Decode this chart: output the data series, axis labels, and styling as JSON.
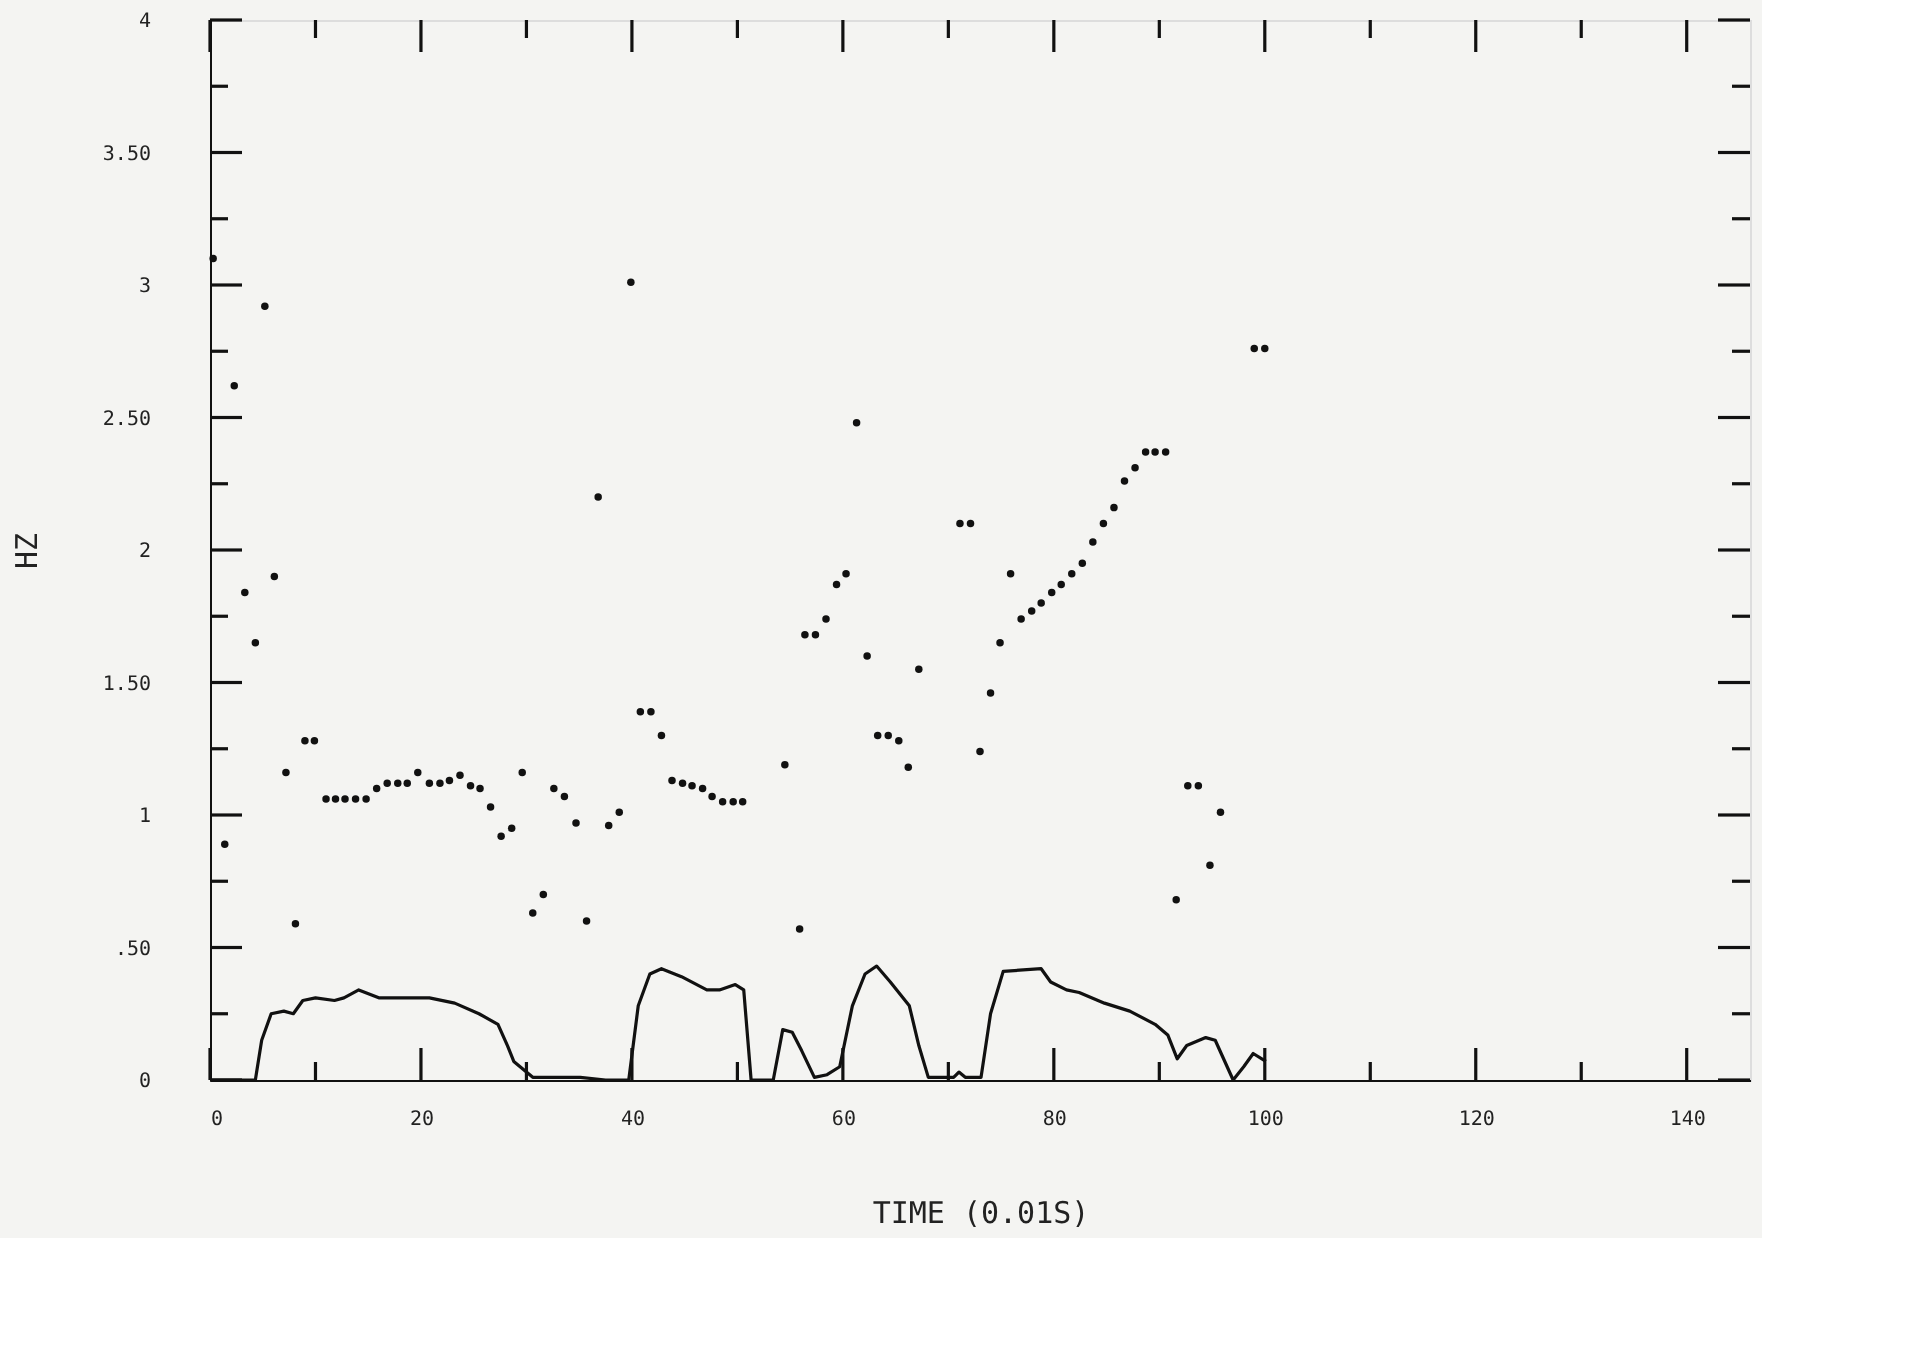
{
  "chart_data": {
    "type": "scatter",
    "xlabel": "TIME    (0.01S)",
    "ylabel": "HZ",
    "xlim": [
      0,
      146
    ],
    "ylim": [
      0,
      4
    ],
    "xticks": [
      0,
      {
        "value": 10,
        "label": null
      },
      20,
      {
        "value": 30,
        "label": null
      },
      40,
      {
        "value": 50,
        "label": null
      },
      60,
      {
        "value": 70,
        "label": null
      },
      80,
      {
        "value": 90,
        "label": null
      },
      100,
      {
        "value": 110,
        "label": null
      },
      120,
      {
        "value": 130,
        "label": null
      },
      140
    ],
    "yticks": [
      0,
      {
        "value": 0.25,
        "label": null
      },
      {
        "value": 0.5,
        "label": ".50"
      },
      {
        "value": 0.75,
        "label": null
      },
      1,
      {
        "value": 1.25,
        "label": null
      },
      {
        "value": 1.5,
        "label": "1.50"
      },
      {
        "value": 1.75,
        "label": null
      },
      2,
      {
        "value": 2.25,
        "label": null
      },
      {
        "value": 2.5,
        "label": "2.50"
      },
      {
        "value": 2.75,
        "label": null
      },
      3,
      {
        "value": 3.25,
        "label": null
      },
      {
        "value": 3.5,
        "label": "3.50"
      },
      {
        "value": 3.75,
        "label": null
      },
      4
    ],
    "grid": false,
    "series": [
      {
        "marker": "circle",
        "color": "#111111",
        "x": [
          0.3,
          1.4,
          2.3,
          3.3,
          4.3,
          5.2,
          6.1,
          7.2,
          8.1,
          9.0,
          9.9,
          11.0,
          11.9,
          12.8,
          13.8,
          14.8,
          15.8,
          16.8,
          17.8,
          18.7,
          19.7,
          20.8,
          21.8,
          22.7,
          23.7,
          24.7,
          25.6,
          26.6,
          27.6,
          28.6,
          29.6,
          30.6,
          31.6,
          32.6,
          33.6,
          34.7,
          35.7,
          36.8,
          37.8,
          38.8,
          39.9,
          40.8,
          41.8,
          42.8,
          43.8,
          44.8,
          45.7,
          46.7,
          47.6,
          48.6,
          49.6,
          50.5,
          54.5,
          55.9,
          56.4,
          57.4,
          58.4,
          59.4,
          60.3,
          61.3,
          62.3,
          63.3,
          64.3,
          65.3,
          66.2,
          67.2,
          71.1,
          72.1,
          73.0,
          74.0,
          74.9,
          75.9,
          76.9,
          77.9,
          78.8,
          79.8,
          80.7,
          81.7,
          82.7,
          83.7,
          84.7,
          85.7,
          86.7,
          87.7,
          88.7,
          89.6,
          90.6,
          91.6,
          92.7,
          93.7,
          94.8,
          95.8,
          99.0,
          100.0
        ],
        "values": [
          3.1,
          0.89,
          2.62,
          1.84,
          1.65,
          2.92,
          1.9,
          1.16,
          0.59,
          1.28,
          1.28,
          1.06,
          1.06,
          1.06,
          1.06,
          1.06,
          1.1,
          1.12,
          1.12,
          1.12,
          1.16,
          1.12,
          1.12,
          1.13,
          1.15,
          1.11,
          1.1,
          1.03,
          0.92,
          0.95,
          1.16,
          0.63,
          0.7,
          1.1,
          1.07,
          0.97,
          0.6,
          2.2,
          0.96,
          1.01,
          3.01,
          1.39,
          1.39,
          1.3,
          1.13,
          1.12,
          1.11,
          1.1,
          1.07,
          1.05,
          1.05,
          1.05,
          1.19,
          0.57,
          1.68,
          1.68,
          1.74,
          1.87,
          1.91,
          2.48,
          1.6,
          1.3,
          1.3,
          1.28,
          1.18,
          1.55,
          2.1,
          2.1,
          1.24,
          1.46,
          1.65,
          1.91,
          1.74,
          1.77,
          1.8,
          1.84,
          1.87,
          1.91,
          1.95,
          2.03,
          2.1,
          2.16,
          2.26,
          2.31,
          2.37,
          2.37,
          2.37,
          0.68,
          1.11,
          1.11,
          0.81,
          1.01,
          2.76,
          2.76
        ]
      },
      {
        "type": "line",
        "line_style": "solid",
        "color": "#111111",
        "x": [
          0,
          4.3,
          4.9,
          5.8,
          7.0,
          7.9,
          8.8,
          10.0,
          11.8,
          12.7,
          14.1,
          16.0,
          17.8,
          20.8,
          23.2,
          25.5,
          27.3,
          28.2,
          28.8,
          30.6,
          32.7,
          35.1,
          37.5,
          39.7,
          40.6,
          41.7,
          42.8,
          44.7,
          47.1,
          48.3,
          49.8,
          50.6,
          51.3,
          53.4,
          54.3,
          55.2,
          56.1,
          57.3,
          58.5,
          59.7,
          60.9,
          62.1,
          63.2,
          64.5,
          66.3,
          67.2,
          68.1,
          70.5,
          71.0,
          71.6,
          73.1,
          74.0,
          75.2,
          78.8,
          79.7,
          81.2,
          82.4,
          84.8,
          87.2,
          89.6,
          90.8,
          91.7,
          92.6,
          94.4,
          95.3,
          97.0,
          98.0,
          98.9,
          100.1
        ],
        "values": [
          0,
          0,
          0.15,
          0.25,
          0.26,
          0.25,
          0.3,
          0.31,
          0.3,
          0.31,
          0.34,
          0.31,
          0.31,
          0.31,
          0.29,
          0.25,
          0.21,
          0.13,
          0.07,
          0.01,
          0.01,
          0.01,
          0,
          0,
          0.28,
          0.4,
          0.42,
          0.39,
          0.34,
          0.34,
          0.36,
          0.34,
          0,
          0,
          0.19,
          0.18,
          0.11,
          0.01,
          0.02,
          0.05,
          0.28,
          0.4,
          0.43,
          0.37,
          0.28,
          0.13,
          0.01,
          0.01,
          0.03,
          0.01,
          0.01,
          0.25,
          0.41,
          0.42,
          0.37,
          0.34,
          0.33,
          0.29,
          0.26,
          0.21,
          0.17,
          0.08,
          0.13,
          0.16,
          0.15,
          0,
          0.05,
          0.1,
          0.07
        ]
      }
    ]
  }
}
